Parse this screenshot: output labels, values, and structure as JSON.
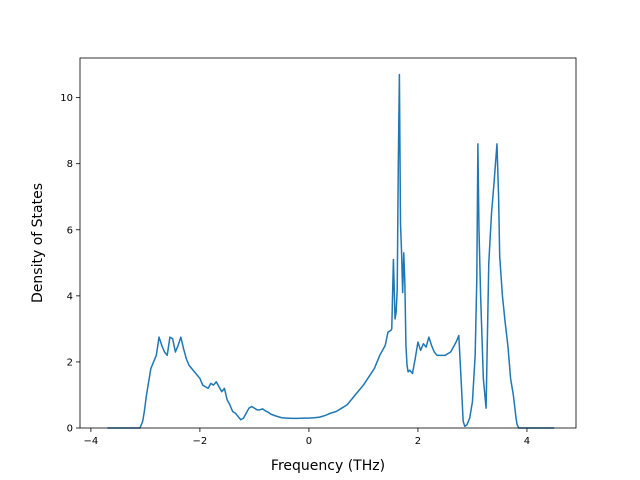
{
  "chart_data": {
    "type": "line",
    "title": "",
    "xlabel": "Frequency (THz)",
    "ylabel": "Density of States",
    "xlim": [
      -4.2,
      4.9
    ],
    "ylim": [
      0,
      11.2
    ],
    "xticks": [
      -4,
      -2,
      0,
      2,
      4
    ],
    "yticks": [
      0,
      2,
      4,
      6,
      8,
      10
    ],
    "grid": false,
    "legend": "none",
    "line_color": "#1f77b4",
    "series": [
      {
        "x": [
          -3.7,
          -3.1,
          -3.05,
          -3.02,
          -2.98,
          -2.95,
          -2.9,
          -2.85,
          -2.8,
          -2.75,
          -2.7,
          -2.65,
          -2.6,
          -2.55,
          -2.5,
          -2.45,
          -2.4,
          -2.35,
          -2.3,
          -2.25,
          -2.2,
          -2.1,
          -2.0,
          -1.95,
          -1.9,
          -1.85,
          -1.8,
          -1.75,
          -1.7,
          -1.65,
          -1.6,
          -1.55,
          -1.5,
          -1.45,
          -1.4,
          -1.35,
          -1.3,
          -1.25,
          -1.2,
          -1.15,
          -1.1,
          -1.05,
          -1.0,
          -0.95,
          -0.9,
          -0.85,
          -0.8,
          -0.75,
          -0.7,
          -0.6,
          -0.5,
          -0.4,
          -0.3,
          -0.2,
          -0.1,
          0.0,
          0.1,
          0.2,
          0.3,
          0.4,
          0.5,
          0.6,
          0.7,
          0.8,
          0.9,
          1.0,
          1.1,
          1.2,
          1.3,
          1.35,
          1.4,
          1.45,
          1.5,
          1.52,
          1.55,
          1.58,
          1.6,
          1.62,
          1.64,
          1.66,
          1.68,
          1.7,
          1.72,
          1.74,
          1.76,
          1.78,
          1.8,
          1.82,
          1.85,
          1.9,
          1.95,
          2.0,
          2.05,
          2.1,
          2.15,
          2.2,
          2.25,
          2.3,
          2.35,
          2.4,
          2.5,
          2.6,
          2.7,
          2.75,
          2.8,
          2.83,
          2.86,
          2.9,
          2.95,
          3.0,
          3.05,
          3.08,
          3.1,
          3.12,
          3.15,
          3.2,
          3.25,
          3.3,
          3.35,
          3.4,
          3.45,
          3.48,
          3.5,
          3.55,
          3.6,
          3.65,
          3.7,
          3.75,
          3.8,
          3.82,
          3.85,
          3.9,
          4.0,
          4.5
        ],
        "y": [
          0,
          0,
          0.2,
          0.5,
          1.0,
          1.3,
          1.8,
          2.0,
          2.2,
          2.75,
          2.5,
          2.3,
          2.2,
          2.75,
          2.7,
          2.3,
          2.5,
          2.75,
          2.4,
          2.1,
          1.9,
          1.7,
          1.5,
          1.3,
          1.25,
          1.2,
          1.35,
          1.3,
          1.4,
          1.25,
          1.1,
          1.2,
          0.85,
          0.7,
          0.5,
          0.45,
          0.35,
          0.25,
          0.3,
          0.45,
          0.6,
          0.65,
          0.6,
          0.55,
          0.55,
          0.58,
          0.52,
          0.48,
          0.42,
          0.36,
          0.31,
          0.3,
          0.29,
          0.29,
          0.3,
          0.3,
          0.31,
          0.33,
          0.38,
          0.45,
          0.5,
          0.6,
          0.7,
          0.9,
          1.1,
          1.3,
          1.55,
          1.8,
          2.2,
          2.35,
          2.5,
          2.9,
          2.95,
          3.0,
          5.1,
          3.3,
          3.5,
          4.2,
          8.0,
          10.7,
          6.2,
          5.3,
          4.1,
          5.3,
          4.4,
          2.5,
          1.9,
          1.7,
          1.75,
          1.65,
          2.1,
          2.6,
          2.35,
          2.55,
          2.45,
          2.75,
          2.5,
          2.3,
          2.2,
          2.2,
          2.2,
          2.3,
          2.6,
          2.8,
          1.2,
          0.2,
          0.05,
          0.1,
          0.3,
          0.8,
          2.2,
          4.5,
          8.6,
          6.0,
          4.0,
          1.5,
          0.6,
          5.0,
          6.5,
          7.5,
          8.6,
          7.0,
          5.2,
          4.0,
          3.2,
          2.5,
          1.5,
          1.0,
          0.3,
          0.1,
          0,
          0,
          0,
          0
        ]
      }
    ]
  }
}
